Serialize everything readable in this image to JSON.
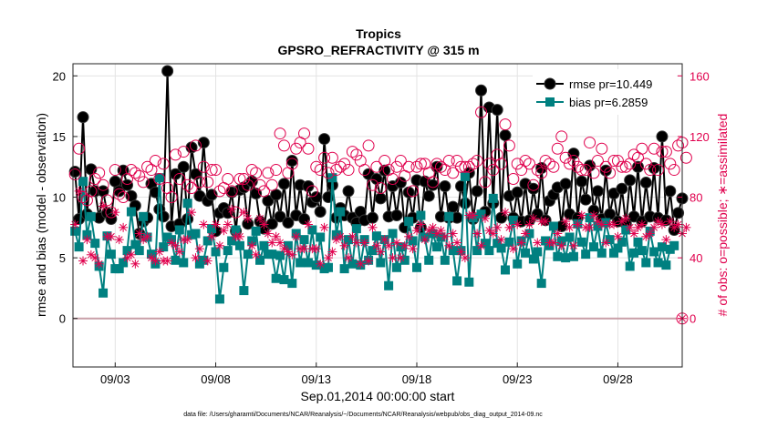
{
  "chart_data": {
    "type": "line",
    "title": "Tropics",
    "subtitle": "GPSRO_REFRACTIVITY @ 315 m",
    "xlabel": "Sep.01,2014 00:00:00 start",
    "ylabel": "rmse and bias (model - observation)",
    "y2label": "# of obs: o=possible; ∗=assimilated",
    "footnote": "data file: /Users/gharamti/Documents/NCAR/Reanalysis/~/Documents/NCAR/Reanalysis/webpub/obs_diag_output_2014-09.nc",
    "xlim": [
      0.9,
      31.2
    ],
    "ylim": [
      -4,
      21
    ],
    "y2lim": [
      -32,
      168
    ],
    "xticks": [
      3,
      8,
      13,
      18,
      23,
      28
    ],
    "xticklabels": [
      "09/03",
      "09/08",
      "09/13",
      "09/18",
      "09/23",
      "09/28"
    ],
    "yticks": [
      0,
      5,
      10,
      15,
      20
    ],
    "y2ticks": [
      0,
      40,
      80,
      120,
      160
    ],
    "zero_line_color": "#c8a0a8",
    "grid": true,
    "series": [
      {
        "name": "rmse pr=10.449",
        "color": "#000000",
        "axis": "left",
        "marker": "circle",
        "values": [
          12.1,
          8.2,
          16.6,
          8.6,
          12.3,
          10.5,
          8.3,
          10.5,
          8.7,
          8.2,
          11.3,
          10.5,
          12.2,
          11.0,
          10.1,
          9.3,
          7.0,
          8.0,
          8.3,
          11.1,
          10.4,
          9.0,
          8.4,
          20.4,
          7.6,
          11.9,
          7.8,
          12.5,
          8.2,
          14.1,
          11.9,
          10.1,
          14.5,
          9.7,
          10.2,
          7.2,
          8.7,
          9.1,
          8.7,
          10.4,
          7.2,
          10.6,
          10.8,
          7.8,
          11.3,
          10.3,
          8.0,
          7.4,
          9.7,
          7.8,
          10.2,
          8.4,
          11.1,
          7.9,
          13.0,
          8.5,
          11.0,
          8.2,
          10.9,
          9.6,
          10.0,
          8.8,
          14.8,
          10.0,
          11.0,
          8.3,
          9.1,
          8.5,
          10.5,
          8.3,
          7.9,
          8.8,
          8.1,
          11.9,
          8.3,
          11.5,
          9.9,
          12.2,
          8.4,
          10.9,
          8.5,
          11.2,
          7.5,
          10.4,
          8.3,
          11.4,
          7.5,
          11.3,
          10.1,
          11.0,
          12.5,
          8.4,
          10.9,
          8.3,
          9.2,
          8.3,
          10.9,
          9.5,
          12.0,
          8.2,
          10.5,
          18.8,
          8.8,
          17.4,
          9.5,
          17.2,
          8.3,
          15.1,
          10.1,
          8.3,
          10.4,
          8.0,
          11.1,
          8.1,
          10.7,
          8.6,
          12.4,
          8.1,
          9.7,
          10.2,
          10.8,
          7.6,
          11.1,
          8.6,
          13.6,
          8.3,
          11.3,
          9.8,
          12.6,
          8.9,
          10.5,
          8.2,
          12.2,
          8.6,
          10.3,
          8.0,
          10.7,
          7.8,
          11.4,
          8.4,
          12.5,
          8.0,
          11.2,
          8.4,
          12.4,
          8.3,
          15.0,
          8.1,
          10.5,
          7.3,
          8.7,
          9.9
        ]
      },
      {
        "name": "bias pr=6.2859",
        "color": "#008080",
        "axis": "left",
        "marker": "square",
        "values": [
          7.2,
          5.9,
          11.3,
          6.9,
          8.4,
          6.2,
          4.3,
          2.1,
          6.8,
          5.3,
          4.1,
          4.1,
          4.6,
          5.6,
          8.8,
          6.1,
          5.6,
          8.4,
          6.7,
          5.3,
          4.5,
          11.6,
          5.9,
          6.7,
          6.5,
          4.8,
          7.3,
          4.6,
          9.5,
          6.9,
          7.0,
          4.5,
          4.8,
          6.4,
          7.4,
          5.5,
          1.6,
          4.2,
          5.6,
          6.4,
          7.3,
          6.0,
          2.3,
          5.3,
          6.4,
          7.2,
          4.8,
          6.0,
          5.3,
          5.3,
          3.3,
          5.2,
          3.2,
          6.0,
          2.9,
          7.0,
          4.6,
          6.5,
          4.6,
          7.3,
          4.4,
          6.7,
          4.1,
          4.2,
          11.6,
          6.9,
          8.8,
          4.1,
          6.5,
          4.5,
          7.4,
          4.4,
          6.5,
          4.8,
          5.6,
          6.8,
          4.6,
          6.5,
          2.7,
          7.0,
          4.2,
          5.9,
          4.8,
          8.0,
          6.4,
          4.2,
          8.5,
          6.7,
          4.8,
          7.0,
          5.9,
          6.7,
          4.8,
          8.4,
          5.6,
          3.1,
          5.6,
          11.7,
          3.0,
          8.3,
          5.6,
          8.6,
          6.2,
          5.6,
          9.9,
          6.2,
          5.8,
          4.0,
          6.3,
          8.1,
          4.5,
          6.4,
          5.4,
          7.0,
          4.9,
          5.5,
          2.9,
          6.4,
          6.0,
          7.6,
          5.1,
          6.4,
          5.0,
          6.7,
          5.1,
          7.8,
          6.3,
          5.3,
          8.3,
          5.9,
          7.6,
          5.4,
          7.9,
          6.5,
          5.4,
          5.8,
          6.3,
          7.3,
          4.3,
          5.4,
          6.3,
          5.6,
          4.6,
          7.2,
          5.5,
          4.6,
          5.9,
          4.4,
          5.7,
          6.0
        ]
      },
      {
        "name": "possible",
        "color": "#e0004d",
        "axis": "right",
        "marker": "circle-open",
        "values": [
          95,
          112,
          80,
          78,
          84,
          92,
          96,
          88,
          78,
          70,
          98,
          82,
          80,
          92,
          98,
          96,
          94,
          90,
          100,
          98,
          104,
          92,
          102,
          86,
          80,
          108,
          92,
          110,
          88,
          86,
          114,
          90,
          100,
          90,
          98,
          98,
          84,
          86,
          92,
          84,
          70,
          92,
          92,
          88,
          98,
          96,
          88,
          84,
          96,
          88,
          98,
          122,
          114,
          96,
          102,
          112,
          116,
          122,
          112,
          84,
          100,
          98,
          106,
          96,
          106,
          98,
          100,
          102,
          98,
          110,
          108,
          104,
          98,
          114,
          88,
          100,
          86,
          104,
          98,
          92,
          100,
          104,
          94,
          100,
          84,
          100,
          102,
          102,
          96,
          90,
          102,
          100,
          98,
          104,
          96,
          104,
          100,
          100,
          100,
          102,
          104,
          136,
          90,
          102,
          98,
          108,
          102,
          128,
          114,
          92,
          102,
          98,
          104,
          102,
          88,
          98,
          96,
          104,
          102,
          100,
          112,
          120,
          106,
          102,
          104,
          100,
          98,
          98,
          116,
          96,
          104,
          112,
          100,
          96,
          104,
          104,
          100,
          100,
          102,
          108,
          106,
          112,
          102,
          98,
          112,
          98,
          110,
          110,
          102,
          98,
          114,
          116,
          106
        ]
      },
      {
        "name": "assimilated",
        "color": "#e0004d",
        "axis": "right",
        "marker": "asterisk",
        "values": [
          62,
          84,
          38,
          52,
          42,
          40,
          36,
          74,
          54,
          54,
          70,
          52,
          60,
          40,
          42,
          36,
          56,
          52,
          54,
          40,
          38,
          44,
          38,
          38,
          50,
          48,
          44,
          52,
          52,
          70,
          40,
          46,
          62,
          38,
          54,
          62,
          48,
          58,
          62,
          72,
          54,
          54,
          70,
          66,
          48,
          42,
          66,
          62,
          56,
          50,
          54,
          50,
          46,
          44,
          42,
          54,
          46,
          46,
          62,
          46,
          46,
          36,
          60,
          40,
          44,
          52,
          54,
          48,
          40,
          54,
          50,
          36,
          50,
          38,
          60,
          48,
          44,
          52,
          48,
          40,
          50,
          40,
          48,
          54,
          46,
          58,
          62,
          52,
          58,
          60,
          56,
          58,
          54,
          48,
          56,
          50,
          44,
          40,
          68,
          68,
          56,
          48,
          66,
          58,
          56,
          60,
          52,
          70,
          60,
          46,
          62,
          50,
          56,
          62,
          66,
          50,
          64,
          64,
          50,
          50,
          56,
          48,
          64,
          60,
          48,
          62,
          68,
          60,
          60,
          68,
          64,
          62,
          50,
          62,
          62,
          54,
          64,
          66,
          60,
          56,
          60,
          62,
          54,
          56,
          60,
          64,
          62,
          52,
          64,
          60,
          62,
          56,
          60
        ]
      }
    ],
    "legend": [
      "rmse pr=10.449",
      "bias pr=6.2859"
    ],
    "legend_location": "top-right"
  }
}
